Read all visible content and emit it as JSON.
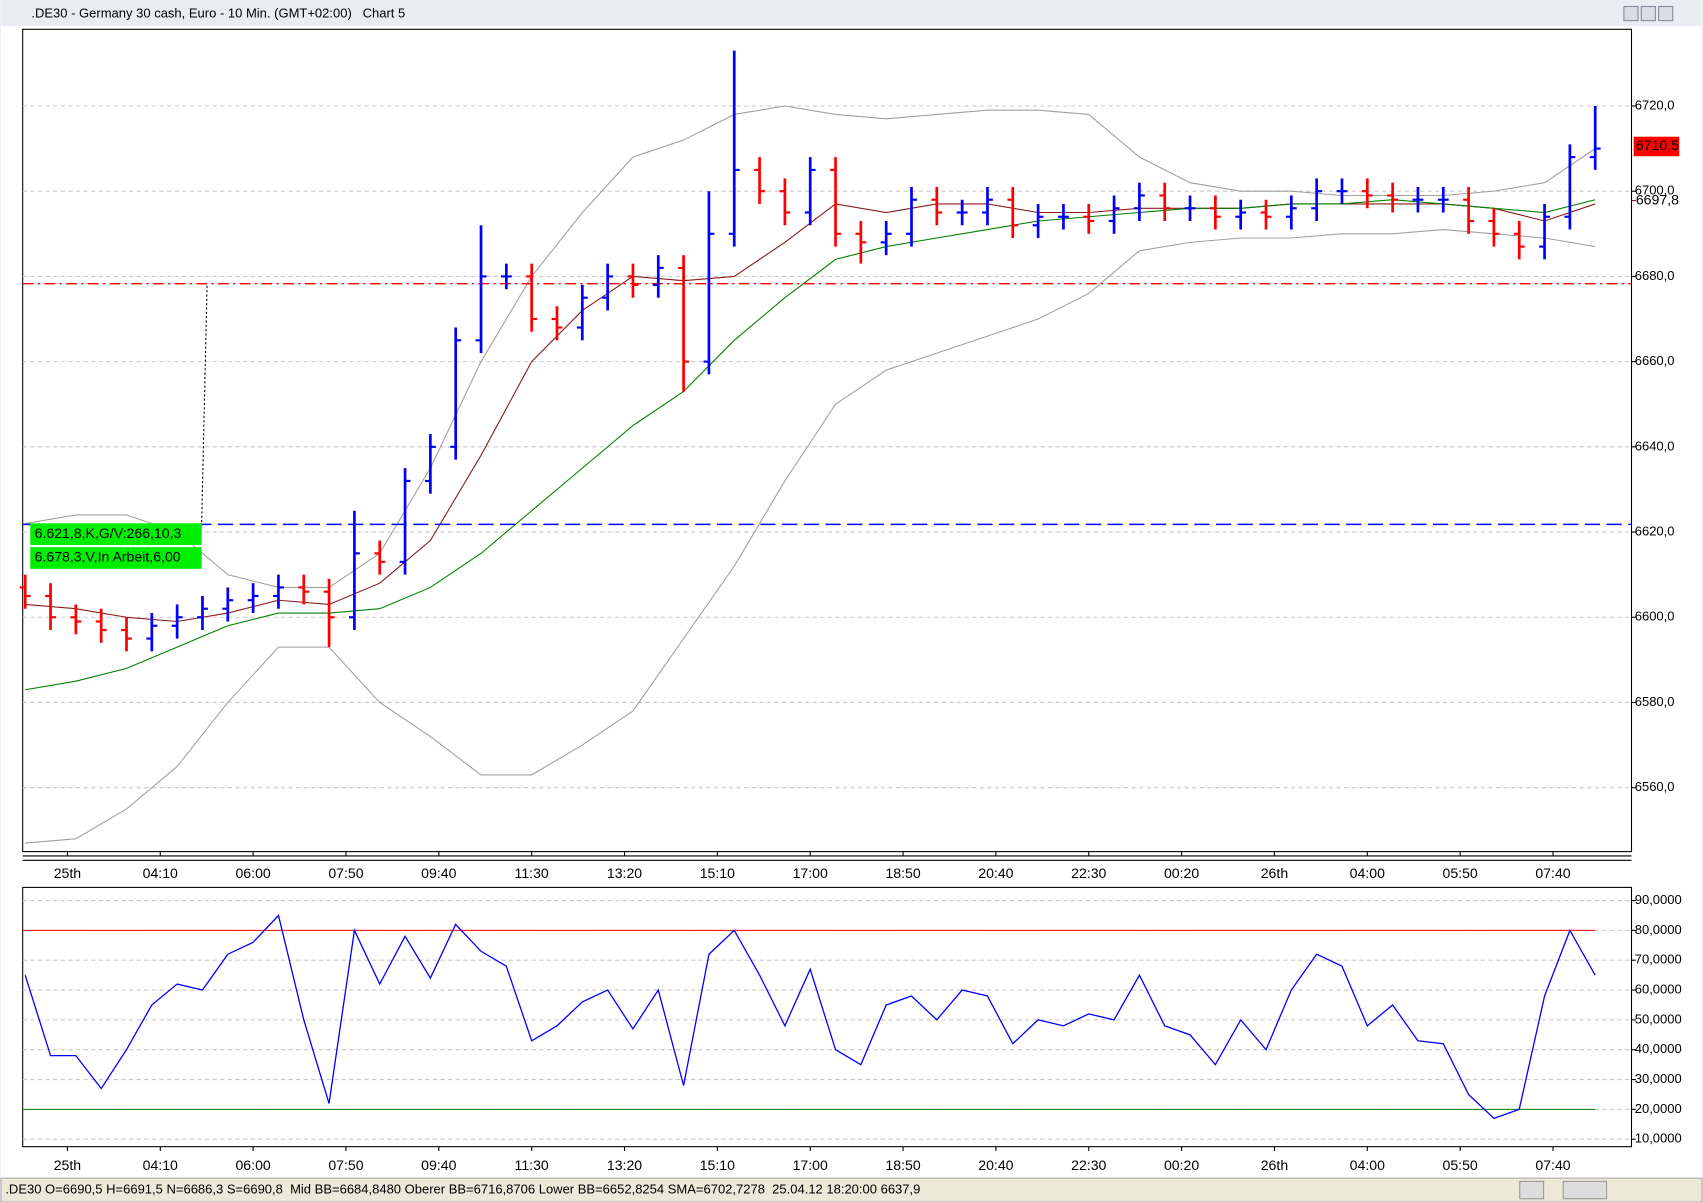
{
  "window": {
    "title": ".DE30 - Germany 30 cash, Euro - 10 Min. (GMT+02:00)   Chart 5"
  },
  "status": ".DE30 O=6690,5 H=6691,5 N=6686,3 S=6690,8  Mid BB=6684,8480 Oberer BB=6716,8706 Lower BB=6652,8254 SMA=6702,7278  25.04.12 18:20:00 6637,9",
  "chart_data": [
    {
      "type": "ohlc",
      "x": [
        0,
        3,
        6,
        9,
        12,
        15,
        18,
        21,
        24,
        27,
        30,
        33,
        36,
        39,
        42,
        45,
        48,
        51,
        54,
        57,
        60,
        63,
        66,
        69,
        72,
        75,
        78,
        81,
        84,
        87,
        90,
        93,
        96,
        99,
        102,
        105,
        108,
        111,
        114,
        117,
        120,
        123,
        126,
        129,
        132,
        135,
        138,
        141,
        144,
        147,
        150,
        153,
        156,
        159,
        162,
        165,
        168,
        171,
        174,
        177,
        180,
        183,
        186
      ],
      "open": [
        6607,
        6605,
        6600,
        6599,
        6597,
        6595,
        6598,
        6600,
        6602,
        6604,
        6605,
        6607,
        6606,
        6600,
        6615,
        6613,
        6632,
        6640,
        6665,
        6680,
        6680,
        6670,
        6668,
        6675,
        6680,
        6678,
        6682,
        6660,
        6690,
        6705,
        6700,
        6695,
        6705,
        6690,
        6688,
        6690,
        6698,
        6695,
        6695,
        6698,
        6692,
        6694,
        6694,
        6693,
        6696,
        6699,
        6696,
        6696,
        6694,
        6695,
        6694,
        6696,
        6700,
        6700,
        6699,
        6698,
        6698,
        6698,
        6693,
        6690,
        6687,
        6694,
        6708
      ],
      "high": [
        6610,
        6608,
        6603,
        6602,
        6600,
        6601,
        6603,
        6605,
        6607,
        6608,
        6610,
        6610,
        6609,
        6625,
        6618,
        6635,
        6643,
        6668,
        6692,
        6683,
        6683,
        6673,
        6678,
        6683,
        6683,
        6685,
        6685,
        6700,
        6733,
        6708,
        6703,
        6708,
        6708,
        6693,
        6693,
        6701,
        6701,
        6698,
        6701,
        6701,
        6697,
        6697,
        6697,
        6699,
        6702,
        6702,
        6699,
        6699,
        6698,
        6698,
        6699,
        6703,
        6703,
        6703,
        6702,
        6701,
        6701,
        6701,
        6696,
        6693,
        6697,
        6711,
        6720
      ],
      "low": [
        6602,
        6597,
        6596,
        6594,
        6592,
        6592,
        6595,
        6597,
        6599,
        6601,
        6602,
        6603,
        6593,
        6597,
        6610,
        6610,
        6629,
        6637,
        6662,
        6677,
        6667,
        6665,
        6665,
        6672,
        6675,
        6675,
        6653,
        6657,
        6687,
        6697,
        6692,
        6692,
        6687,
        6683,
        6685,
        6687,
        6692,
        6692,
        6692,
        6689,
        6689,
        6691,
        6690,
        6690,
        6693,
        6693,
        6693,
        6691,
        6691,
        6691,
        6691,
        6693,
        6697,
        6696,
        6695,
        6695,
        6695,
        6690,
        6687,
        6684,
        6684,
        6691,
        6705
      ],
      "close": [
        6605,
        6600,
        6599,
        6597,
        6595,
        6598,
        6600,
        6602,
        6604,
        6605,
        6607,
        6606,
        6600,
        6615,
        6613,
        6632,
        6640,
        6665,
        6680,
        6680,
        6670,
        6668,
        6675,
        6680,
        6678,
        6682,
        6660,
        6690,
        6705,
        6700,
        6695,
        6705,
        6690,
        6688,
        6690,
        6698,
        6695,
        6695,
        6698,
        6692,
        6694,
        6694,
        6693,
        6696,
        6699,
        6696,
        6696,
        6694,
        6695,
        6694,
        6696,
        6700,
        6700,
        6699,
        6698,
        6698,
        6698,
        6693,
        6690,
        6687,
        6694,
        6708,
        6710
      ],
      "up_color": "#0000ff",
      "down_color": "#ff0000",
      "overlay_x": [
        0,
        6,
        12,
        18,
        24,
        30,
        36,
        42,
        48,
        54,
        60,
        66,
        72,
        78,
        84,
        90,
        96,
        102,
        108,
        114,
        120,
        126,
        132,
        138,
        144,
        150,
        156,
        162,
        168,
        174,
        180,
        186
      ],
      "overlays": [
        {
          "color": "#a0a0a0",
          "values": [
            6622,
            6624,
            6624,
            6620,
            6610,
            6607,
            6607,
            6615,
            6635,
            6660,
            6680,
            6695,
            6708,
            6712,
            6718,
            6720,
            6718,
            6717,
            6718,
            6719,
            6719,
            6718,
            6708,
            6702,
            6700,
            6700,
            6699,
            6699,
            6699,
            6700,
            6702,
            6710
          ]
        },
        {
          "color": "#a0a0a0",
          "values": [
            6547,
            6548,
            6555,
            6565,
            6580,
            6593,
            6593,
            6580,
            6572,
            6563,
            6563,
            6570,
            6578,
            6595,
            6612,
            6632,
            6650,
            6658,
            6662,
            6666,
            6670,
            6676,
            6686,
            6688,
            6689,
            6689,
            6690,
            6690,
            6691,
            6690,
            6689,
            6687
          ]
        },
        {
          "color": "#8b1a1a",
          "values": [
            6603,
            6602,
            6600,
            6599,
            6601,
            6604,
            6603,
            6608,
            6618,
            6638,
            6660,
            6672,
            6680,
            6679,
            6680,
            6688,
            6697,
            6695,
            6697,
            6697,
            6695,
            6695,
            6696,
            6696,
            6696,
            6697,
            6697,
            6697,
            6697,
            6696,
            6693,
            6697
          ]
        },
        {
          "color": "#008000",
          "values": [
            6583,
            6585,
            6588,
            6593,
            6598,
            6601,
            6601,
            6602,
            6607,
            6615,
            6625,
            6635,
            6645,
            6653,
            6665,
            6675,
            6684,
            6687,
            6689,
            6691,
            6693,
            6694,
            6695,
            6696,
            6696,
            6697,
            6697,
            6698,
            6697,
            6696,
            6695,
            6698
          ]
        }
      ],
      "levels": [
        {
          "value": 6621.8,
          "label": "6.621,8,K,G/V:266,10,3",
          "color": "#0000ff"
        },
        {
          "value": 6678.3,
          "label": "6.678,3,V,In Arbeit,6,00",
          "color": "#ff0000"
        }
      ],
      "price_labels": [
        {
          "value": 6710.5,
          "label": "6710,5"
        },
        {
          "value": 6697.8,
          "label": "6697,8"
        }
      ],
      "xlim": [
        -0.3,
        190.3
      ],
      "xticks": [
        {
          "value": 5,
          "label": "25th"
        },
        {
          "value": 16,
          "label": "04:10"
        },
        {
          "value": 27,
          "label": "06:00"
        },
        {
          "value": 38,
          "label": "07:50"
        },
        {
          "value": 49,
          "label": "09:40"
        },
        {
          "value": 60,
          "label": "11:30"
        },
        {
          "value": 71,
          "label": "13:20"
        },
        {
          "value": 82,
          "label": "15:10"
        },
        {
          "value": 93,
          "label": "17:00"
        },
        {
          "value": 104,
          "label": "18:50"
        },
        {
          "value": 115,
          "label": "20:40"
        },
        {
          "value": 126,
          "label": "22:30"
        },
        {
          "value": 137,
          "label": "00:20"
        },
        {
          "value": 148,
          "label": "26th"
        },
        {
          "value": 159,
          "label": "04:00"
        },
        {
          "value": 170,
          "label": "05:50"
        },
        {
          "value": 181,
          "label": "07:40"
        }
      ],
      "ylim": [
        6545,
        6738
      ],
      "yticks": [
        {
          "value": 6560,
          "label": "6560,0"
        },
        {
          "value": 6580,
          "label": "6580,0"
        },
        {
          "value": 6600,
          "label": "6600,0"
        },
        {
          "value": 6620,
          "label": "6620,0"
        },
        {
          "value": 6640,
          "label": "6640,0"
        },
        {
          "value": 6660,
          "label": "6660,0"
        },
        {
          "value": 6680,
          "label": "6680,0"
        },
        {
          "value": 6700,
          "label": "6700,0"
        },
        {
          "value": 6720,
          "label": "6720,0"
        }
      ],
      "grid": true
    },
    {
      "type": "line",
      "x": [
        0,
        3,
        6,
        9,
        12,
        15,
        18,
        21,
        24,
        27,
        30,
        33,
        36,
        39,
        42,
        45,
        48,
        51,
        54,
        57,
        60,
        63,
        66,
        69,
        72,
        75,
        78,
        81,
        84,
        87,
        90,
        93,
        96,
        99,
        102,
        105,
        108,
        111,
        114,
        117,
        120,
        123,
        126,
        129,
        132,
        135,
        138,
        141,
        144,
        147,
        150,
        153,
        156,
        159,
        162,
        165,
        168,
        171,
        174,
        177,
        180,
        183,
        186
      ],
      "values": [
        65,
        38,
        38,
        27,
        40,
        55,
        62,
        60,
        72,
        76,
        85,
        50,
        22,
        80,
        62,
        78,
        64,
        82,
        73,
        68,
        43,
        48,
        56,
        60,
        47,
        60,
        28,
        72,
        80,
        65,
        48,
        67,
        40,
        35,
        55,
        58,
        50,
        60,
        58,
        42,
        50,
        48,
        52,
        50,
        65,
        48,
        45,
        35,
        50,
        40,
        60,
        72,
        68,
        48,
        55,
        43,
        42,
        25,
        17,
        20,
        58,
        80,
        65
      ],
      "color": "#0000ff",
      "levels": [
        {
          "value": 80,
          "color": "#ff0000"
        },
        {
          "value": 20,
          "color": "#008000"
        }
      ],
      "xlim": [
        -0.3,
        190.3
      ],
      "xticks": [
        {
          "value": 5,
          "label": "25th"
        },
        {
          "value": 16,
          "label": "04:10"
        },
        {
          "value": 27,
          "label": "06:00"
        },
        {
          "value": 38,
          "label": "07:50"
        },
        {
          "value": 49,
          "label": "09:40"
        },
        {
          "value": 60,
          "label": "11:30"
        },
        {
          "value": 71,
          "label": "13:20"
        },
        {
          "value": 82,
          "label": "15:10"
        },
        {
          "value": 93,
          "label": "17:00"
        },
        {
          "value": 104,
          "label": "18:50"
        },
        {
          "value": 115,
          "label": "20:40"
        },
        {
          "value": 126,
          "label": "22:30"
        },
        {
          "value": 137,
          "label": "00:20"
        },
        {
          "value": 148,
          "label": "26th"
        },
        {
          "value": 159,
          "label": "04:00"
        },
        {
          "value": 170,
          "label": "05:50"
        },
        {
          "value": 181,
          "label": "07:40"
        }
      ],
      "ylim": [
        7.5,
        94.4
      ],
      "yticks": [
        {
          "value": 10,
          "label": "10,0000"
        },
        {
          "value": 20,
          "label": "20,0000"
        },
        {
          "value": 30,
          "label": "30,0000"
        },
        {
          "value": 40,
          "label": "40,0000"
        },
        {
          "value": 50,
          "label": "50,0000"
        },
        {
          "value": 60,
          "label": "60,0000"
        },
        {
          "value": 70,
          "label": "70,0000"
        },
        {
          "value": 80,
          "label": "80,0000"
        },
        {
          "value": 90,
          "label": "90,0000"
        }
      ],
      "grid": true
    }
  ]
}
